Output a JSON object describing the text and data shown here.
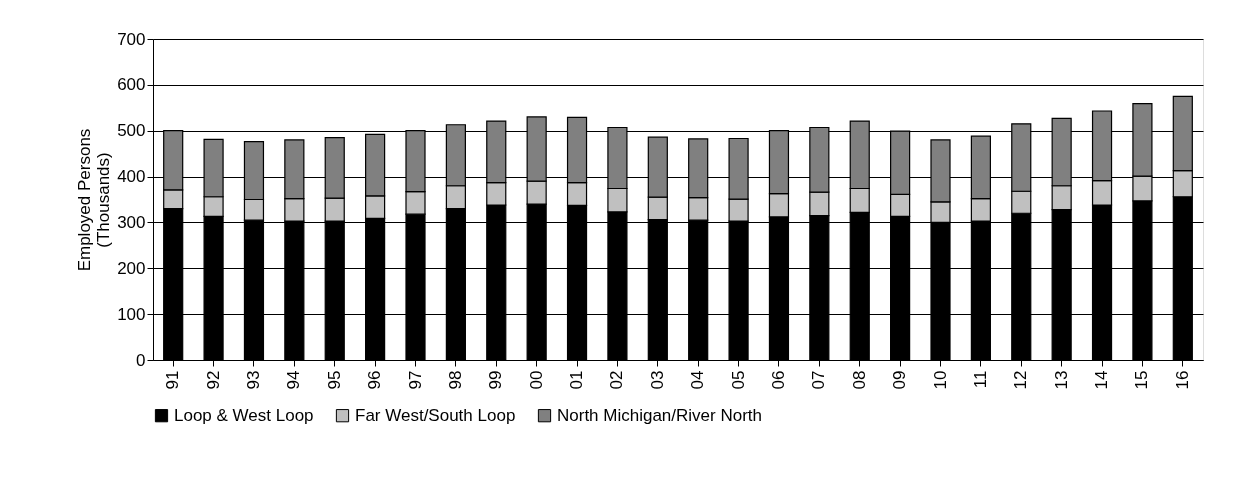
{
  "chart_data": {
    "type": "bar",
    "stacked": true,
    "ylabel": "Employed Persons\n(Thousands)",
    "categories": [
      "91",
      "92",
      "93",
      "94",
      "95",
      "96",
      "97",
      "98",
      "99",
      "00",
      "01",
      "02",
      "03",
      "04",
      "05",
      "06",
      "07",
      "08",
      "09",
      "10",
      "11",
      "12",
      "13",
      "14",
      "15",
      "16"
    ],
    "series": [
      {
        "name": "Loop & West Loop",
        "color": "#000000",
        "values": [
          330,
          313,
          305,
          303,
          303,
          309,
          318,
          330,
          338,
          340,
          337,
          323,
          306,
          305,
          303,
          312,
          315,
          322,
          313,
          300,
          303,
          320,
          328,
          338,
          347,
          356
        ]
      },
      {
        "name": "Far West/South Loop",
        "color": "#c0c0c0",
        "values": [
          41,
          43,
          45,
          49,
          50,
          49,
          49,
          50,
          49,
          50,
          50,
          51,
          49,
          49,
          48,
          51,
          51,
          52,
          48,
          45,
          49,
          48,
          52,
          53,
          54,
          57
        ]
      },
      {
        "name": "North Michigan/River North",
        "color": "#808080",
        "values": [
          129,
          125,
          126,
          128,
          132,
          134,
          133,
          133,
          134,
          140,
          142,
          133,
          131,
          128,
          132,
          137,
          141,
          147,
          138,
          135,
          136,
          147,
          147,
          152,
          158,
          162
        ]
      }
    ],
    "ylim": [
      0,
      700
    ],
    "yticks": [
      0,
      100,
      200,
      300,
      400,
      500,
      600,
      700
    ],
    "grid": "y",
    "legend": "bottom"
  }
}
